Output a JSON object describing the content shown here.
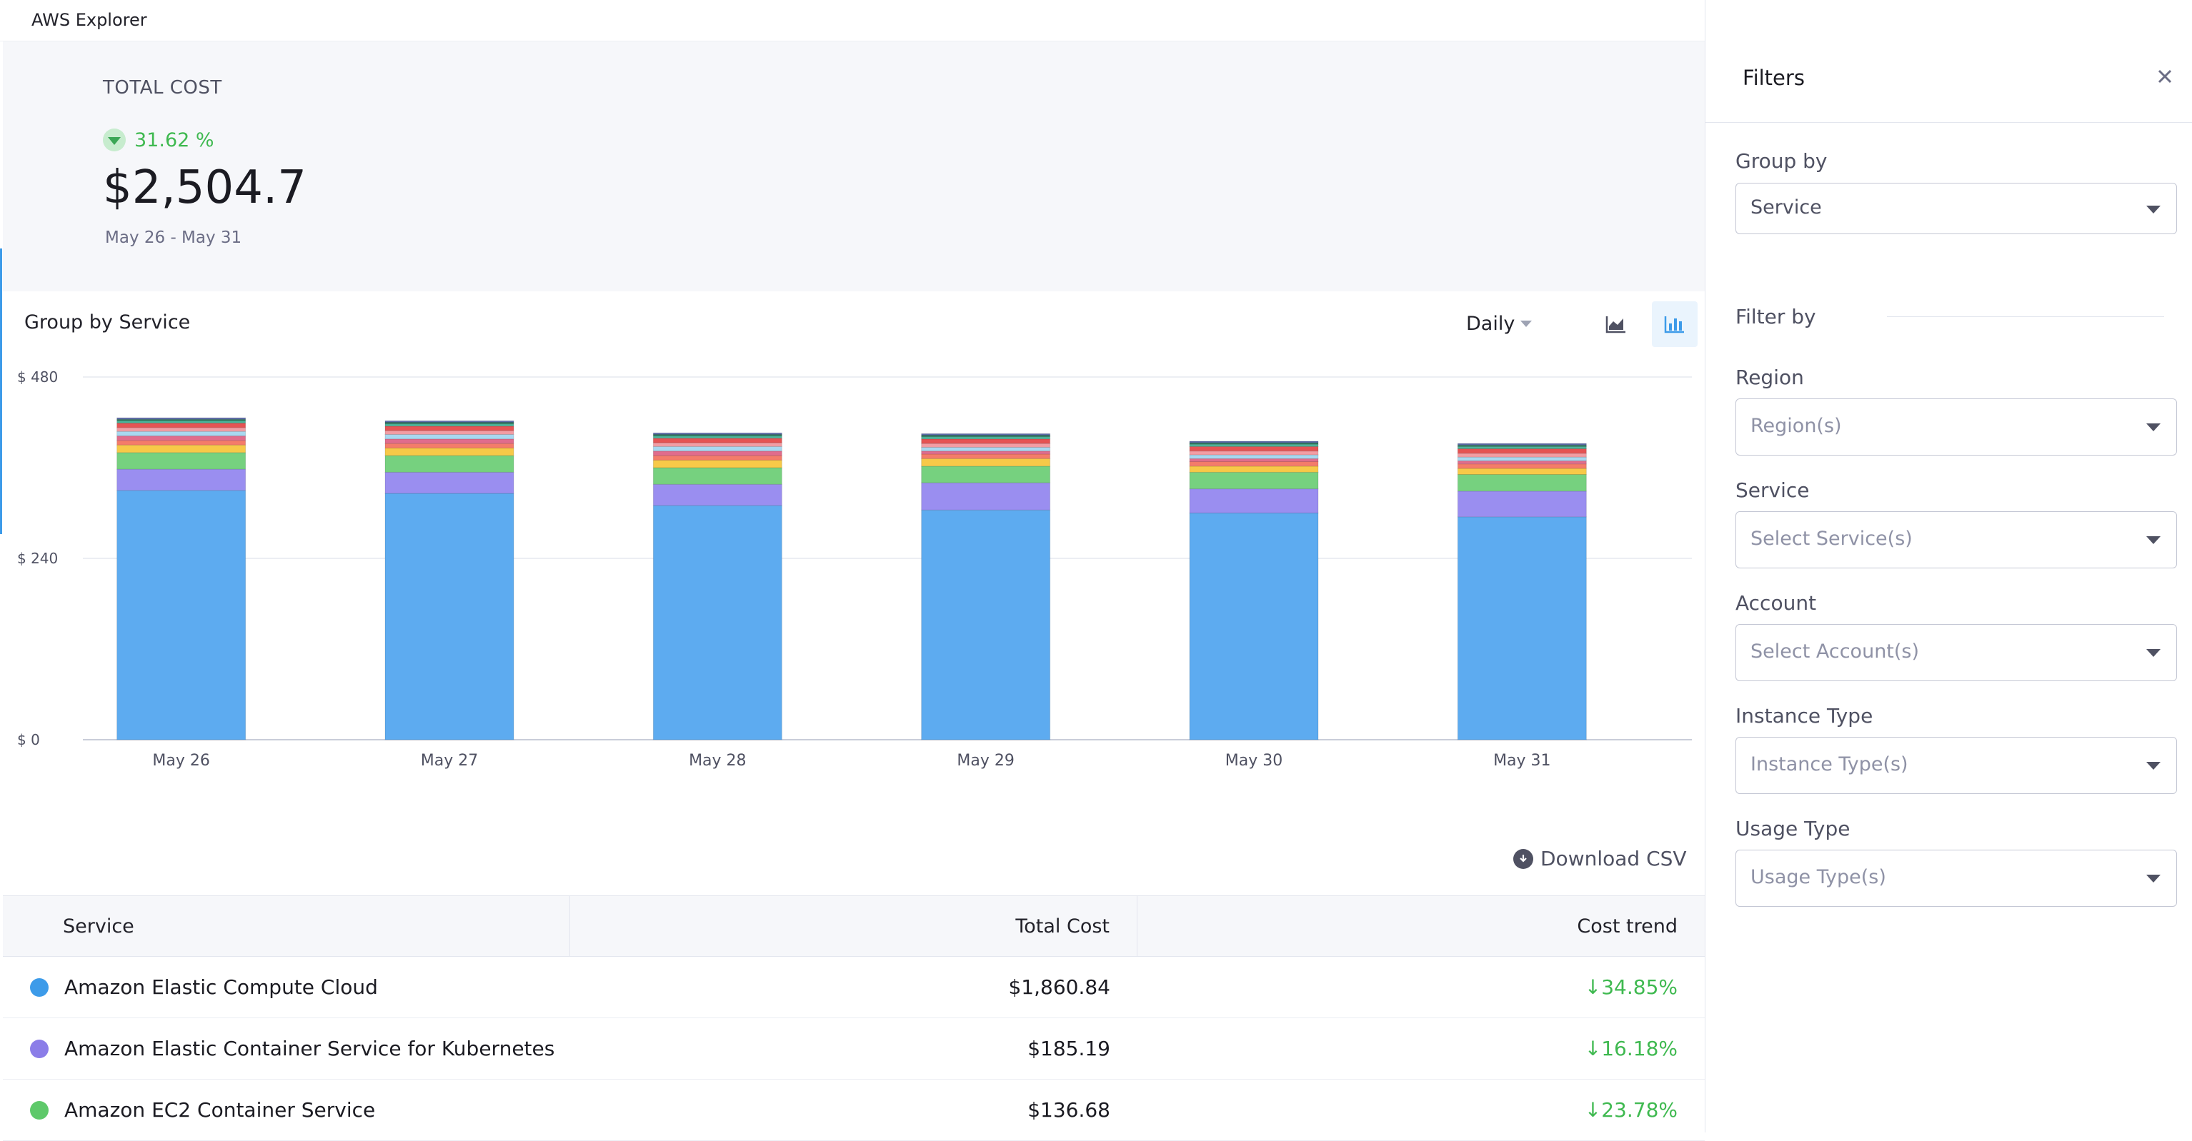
{
  "app": {
    "title": "AWS Explorer"
  },
  "summary": {
    "label": "TOTAL COST",
    "change_pct": "31.62 %",
    "total": "$2,504.7",
    "date_range": "May 26 - May 31"
  },
  "chart_card": {
    "title": "Group by Service",
    "period": "Daily",
    "view_options": [
      "area-chart-icon",
      "bar-chart-icon"
    ],
    "active_view": "bar-chart-icon"
  },
  "chart_data": {
    "type": "bar",
    "stacked": true,
    "categories": [
      "May 26",
      "May 27",
      "May 28",
      "May 29",
      "May 30",
      "May 31"
    ],
    "y_ticks": [
      "$ 0",
      "$ 240",
      "$ 480"
    ],
    "ylim": [
      0,
      480
    ],
    "grid": true,
    "series": [
      {
        "name": "Amazon Elastic Compute Cloud",
        "color": "#5dabf0",
        "values": [
          330,
          326,
          310,
          304,
          300,
          295
        ]
      },
      {
        "name": "Amazon Elastic Container Service for Kubernetes",
        "color": "#9a8ef0",
        "values": [
          28,
          28,
          28,
          36,
          32,
          34
        ]
      },
      {
        "name": "Amazon EC2 Container Service",
        "color": "#76d17f",
        "values": [
          22,
          22,
          22,
          22,
          22,
          22
        ]
      },
      {
        "name": "",
        "color": "#f7c948",
        "values": [
          10,
          10,
          10,
          10,
          8,
          8
        ]
      },
      {
        "name": "",
        "color": "#f47c6a",
        "values": [
          6,
          6,
          6,
          6,
          6,
          6
        ]
      },
      {
        "name": "",
        "color": "#e06c8c",
        "values": [
          6,
          6,
          6,
          4,
          4,
          4
        ]
      },
      {
        "name": "",
        "color": "#a8d8f0",
        "values": [
          6,
          6,
          6,
          5,
          5,
          5
        ]
      },
      {
        "name": "",
        "color": "#f29da4",
        "values": [
          5,
          5,
          5,
          5,
          5,
          5
        ]
      },
      {
        "name": "",
        "color": "#e55353",
        "values": [
          6,
          6,
          6,
          6,
          6,
          6
        ]
      },
      {
        "name": "",
        "color": "#4bb59a",
        "values": [
          3,
          3,
          3,
          3,
          3,
          3
        ]
      },
      {
        "name": "",
        "color": "#2f7a5e",
        "values": [
          2,
          2,
          2,
          2,
          2,
          2
        ]
      },
      {
        "name": "",
        "color": "#5b6aa9",
        "values": [
          2,
          2,
          2,
          2,
          2,
          2
        ]
      }
    ]
  },
  "download": {
    "label": "Download CSV"
  },
  "table": {
    "columns": [
      "Service",
      "Total Cost",
      "Cost trend"
    ],
    "rows": [
      {
        "service": "Amazon Elastic Compute Cloud",
        "color": "#3d9be9",
        "total": "$1,860.84",
        "trend": "↓34.85%"
      },
      {
        "service": "Amazon Elastic Container Service for Kubernetes",
        "color": "#8b7de8",
        "total": "$185.19",
        "trend": "↓16.18%"
      },
      {
        "service": "Amazon EC2 Container Service",
        "color": "#5ec96a",
        "total": "$136.68",
        "trend": "↓23.78%"
      }
    ]
  },
  "filters": {
    "title": "Filters",
    "group_by_label": "Group by",
    "group_by_value": "Service",
    "filter_by_label": "Filter by",
    "fields": [
      {
        "label": "Region",
        "placeholder": "Region(s)"
      },
      {
        "label": "Service",
        "placeholder": "Select Service(s)"
      },
      {
        "label": "Account",
        "placeholder": "Select Account(s)"
      },
      {
        "label": "Instance Type",
        "placeholder": "Instance Type(s)"
      },
      {
        "label": "Usage Type",
        "placeholder": "Usage Type(s)"
      }
    ]
  }
}
